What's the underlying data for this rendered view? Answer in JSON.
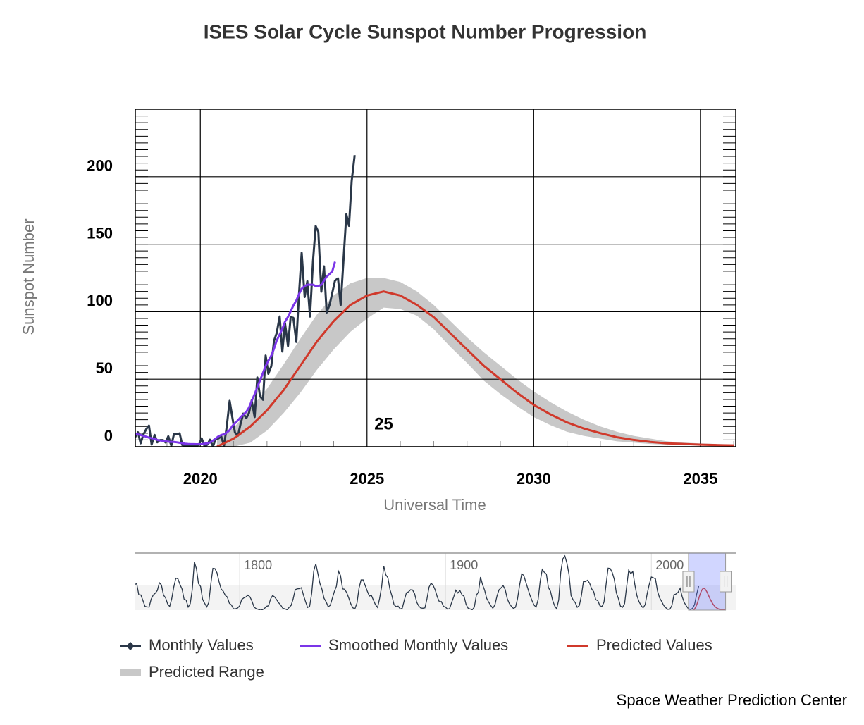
{
  "chart_data": {
    "type": "line",
    "title": "ISES Solar Cycle Sunspot Number Progression",
    "x_label": "Universal Time",
    "y_label": "Sunspot Number",
    "xlim": [
      2018.05,
      2036.06
    ],
    "xticks": [
      2020,
      2025,
      2030,
      2035
    ],
    "xminorticks": [
      2019,
      2021,
      2022,
      2023,
      2024,
      2026,
      2027,
      2028,
      2029,
      2031,
      2032,
      2033,
      2034,
      2036
    ],
    "ylim": [
      0,
      250
    ],
    "yticks": [
      0,
      50,
      100,
      150,
      200
    ],
    "yminorticks": [
      5,
      10,
      15,
      20,
      25,
      30,
      35,
      40,
      45,
      50,
      55,
      60,
      65,
      70,
      75,
      80,
      85,
      90,
      95,
      100,
      105,
      110,
      115,
      120,
      125,
      130,
      135,
      140,
      145,
      150,
      155,
      160,
      165,
      170,
      175,
      180,
      185,
      190,
      195,
      200,
      205,
      210,
      215,
      220,
      225,
      230,
      235,
      240,
      245
    ],
    "grid": true,
    "legend": "bottom-left",
    "annotations": [
      {
        "text": "25",
        "x": 2025.5,
        "y": 16
      }
    ],
    "series": [
      {
        "name": "Monthly Values",
        "color": "#2a3748",
        "x": [
          2018.04,
          2018.13,
          2018.21,
          2018.29,
          2018.38,
          2018.46,
          2018.54,
          2018.63,
          2018.71,
          2018.79,
          2018.88,
          2018.96,
          2019.04,
          2019.13,
          2019.21,
          2019.29,
          2019.38,
          2019.46,
          2019.54,
          2019.63,
          2019.71,
          2019.79,
          2019.88,
          2019.96,
          2020.04,
          2020.13,
          2020.21,
          2020.29,
          2020.38,
          2020.46,
          2020.54,
          2020.63,
          2020.71,
          2020.79,
          2020.88,
          2020.96,
          2021.04,
          2021.13,
          2021.21,
          2021.29,
          2021.38,
          2021.46,
          2021.54,
          2021.63,
          2021.71,
          2021.79,
          2021.88,
          2021.96,
          2022.04,
          2022.13,
          2022.21,
          2022.29,
          2022.38,
          2022.46,
          2022.54,
          2022.63,
          2022.71,
          2022.79,
          2022.88,
          2022.96,
          2023.04,
          2023.13,
          2023.21,
          2023.29,
          2023.38,
          2023.46,
          2023.54,
          2023.63,
          2023.71,
          2023.79,
          2023.88,
          2023.96,
          2024.04,
          2024.13,
          2024.21,
          2024.29,
          2024.38,
          2024.46,
          2024.54,
          2024.63
        ],
        "values": [
          6.8,
          10.7,
          2.5,
          8.9,
          13.1,
          15.6,
          1.6,
          8.7,
          3.3,
          4.9,
          4.9,
          3.1,
          7.7,
          0.8,
          9.4,
          9.1,
          9.9,
          1.2,
          0.9,
          0.5,
          1.1,
          0.4,
          0.5,
          1.5,
          6.2,
          0.2,
          1.5,
          5.2,
          0.2,
          5.8,
          6.1,
          7.5,
          0.6,
          14.4,
          34.0,
          21.8,
          10.4,
          8.2,
          17.2,
          24.5,
          21.2,
          25.0,
          34.3,
          22.0,
          51.3,
          37.4,
          34.8,
          67.5,
          54.0,
          59.7,
          78.5,
          84.1,
          96.5,
          70.5,
          91.4,
          74.6,
          96.0,
          95.5,
          77.6,
          113.1,
          143.6,
          110.9,
          122.6,
          96.4,
          137.4,
          163.4,
          159.1,
          114.8,
          133.6,
          99.4,
          105.4,
          114.2,
          123.0,
          124.7,
          104.9,
          136.5,
          172.1,
          163.6,
          196.8,
          216.0
        ]
      },
      {
        "name": "Smoothed Monthly Values",
        "color": "#7b35e8",
        "x": [
          2018.04,
          2018.13,
          2018.21,
          2018.29,
          2018.38,
          2018.46,
          2018.54,
          2018.63,
          2018.71,
          2018.79,
          2018.88,
          2018.96,
          2019.04,
          2019.13,
          2019.21,
          2019.29,
          2019.38,
          2019.46,
          2019.54,
          2019.63,
          2019.71,
          2019.79,
          2019.88,
          2019.96,
          2020.04,
          2020.13,
          2020.21,
          2020.29,
          2020.38,
          2020.46,
          2020.54,
          2020.63,
          2020.71,
          2020.79,
          2020.88,
          2020.96,
          2021.04,
          2021.13,
          2021.21,
          2021.29,
          2021.38,
          2021.46,
          2021.54,
          2021.63,
          2021.71,
          2021.79,
          2021.88,
          2021.96,
          2022.04,
          2022.13,
          2022.21,
          2022.29,
          2022.38,
          2022.46,
          2022.54,
          2022.63,
          2022.71,
          2022.79,
          2022.88,
          2022.96,
          2023.04,
          2023.13,
          2023.21,
          2023.29,
          2023.38,
          2023.46,
          2023.54,
          2023.63,
          2023.71,
          2023.79,
          2023.88,
          2023.96,
          2024.04
        ],
        "values": [
          9.4,
          9.1,
          8.7,
          8.0,
          7.4,
          6.7,
          6.3,
          5.8,
          5.0,
          4.6,
          4.4,
          4.0,
          3.7,
          3.5,
          3.5,
          3.3,
          2.9,
          2.6,
          2.2,
          2.0,
          1.9,
          1.9,
          1.8,
          1.8,
          1.9,
          2.3,
          2.5,
          3.1,
          4.5,
          6.0,
          7.6,
          8.7,
          9.2,
          10.4,
          12.3,
          15.3,
          17.4,
          19.6,
          21.9,
          23.8,
          25.8,
          29.0,
          33.8,
          39.0,
          44.1,
          49.0,
          54.7,
          59.8,
          63.6,
          67.5,
          72.6,
          78.6,
          83.1,
          87.3,
          92.6,
          96.2,
          100.3,
          104.5,
          108.3,
          113.1,
          117.0,
          119.0,
          120.0,
          120.0,
          120.0,
          119.0,
          119.0,
          120.0,
          123.0,
          126.0,
          128.0,
          130.0,
          137.0
        ]
      },
      {
        "name": "Predicted Values",
        "color": "#d0392b",
        "x": [
          2020.5,
          2021,
          2021.5,
          2022,
          2022.5,
          2023,
          2023.5,
          2024,
          2024.5,
          2025,
          2025.5,
          2026,
          2026.5,
          2027,
          2027.5,
          2028,
          2028.5,
          2029,
          2029.5,
          2030,
          2030.5,
          2031,
          2031.5,
          2032,
          2032.5,
          2033,
          2033.5,
          2034,
          2034.5,
          2035,
          2035.5,
          2036
        ],
        "values": [
          0,
          6,
          15,
          27,
          42,
          60,
          78,
          93,
          105,
          112,
          115,
          112,
          105,
          96,
          84,
          72,
          60,
          50,
          40,
          31,
          24,
          18,
          13.5,
          10,
          7,
          5,
          3.5,
          2.5,
          2,
          1.5,
          1.2,
          1.0
        ]
      },
      {
        "name": "Predicted Range",
        "color": "#c8c8c8",
        "type": "range",
        "x": [
          2020.5,
          2021,
          2021.5,
          2022,
          2022.5,
          2023,
          2023.5,
          2024,
          2024.5,
          2025,
          2025.5,
          2026,
          2026.5,
          2027,
          2027.5,
          2028,
          2028.5,
          2029,
          2029.5,
          2030,
          2030.5,
          2031,
          2031.5,
          2032,
          2032.5,
          2033,
          2033.5,
          2034,
          2034.5,
          2035,
          2035.5,
          2036
        ],
        "values": [
          5,
          14,
          28,
          43,
          61,
          80,
          98,
          112,
          121,
          125,
          125,
          122,
          115,
          105,
          93,
          81,
          70,
          60,
          50,
          41,
          33,
          26,
          20,
          15,
          11,
          8,
          6,
          4,
          3,
          2.5,
          2,
          1.5
        ],
        "low": [
          0,
          0,
          3,
          12,
          25,
          40,
          57,
          72,
          85,
          95,
          103,
          102,
          97,
          87,
          74,
          62,
          49,
          39,
          30,
          22,
          16,
          11,
          8,
          6,
          4,
          3,
          2,
          1.5,
          1,
          1,
          0.8,
          0.7
        ]
      }
    ],
    "navigator": {
      "color": "#2a3748",
      "xlim": [
        1749.3,
        2041
      ],
      "xticks": [
        1800,
        1900,
        2000
      ],
      "ylim": [
        0,
        300
      ],
      "x": [
        1749,
        1750,
        1751,
        1752,
        1753,
        1754,
        1755,
        1756,
        1757,
        1758,
        1759,
        1760,
        1761,
        1762,
        1763,
        1764,
        1765,
        1766,
        1767,
        1768,
        1769,
        1770,
        1771,
        1772,
        1773,
        1774,
        1775,
        1776,
        1777,
        1778,
        1779,
        1780,
        1781,
        1782,
        1783,
        1784,
        1785,
        1786,
        1787,
        1788,
        1789,
        1790,
        1791,
        1792,
        1793,
        1794,
        1795,
        1796,
        1797,
        1798,
        1799,
        1800,
        1801,
        1802,
        1803,
        1804,
        1805,
        1806,
        1807,
        1808,
        1809,
        1810,
        1811,
        1812,
        1813,
        1814,
        1815,
        1816,
        1817,
        1818,
        1819,
        1820,
        1821,
        1822,
        1823,
        1824,
        1825,
        1826,
        1827,
        1828,
        1829,
        1830,
        1831,
        1832,
        1833,
        1834,
        1835,
        1836,
        1837,
        1838,
        1839,
        1840,
        1841,
        1842,
        1843,
        1844,
        1845,
        1846,
        1847,
        1848,
        1849,
        1850,
        1851,
        1852,
        1853,
        1854,
        1855,
        1856,
        1857,
        1858,
        1859,
        1860,
        1861,
        1862,
        1863,
        1864,
        1865,
        1866,
        1867,
        1868,
        1869,
        1870,
        1871,
        1872,
        1873,
        1874,
        1875,
        1876,
        1877,
        1878,
        1879,
        1880,
        1881,
        1882,
        1883,
        1884,
        1885,
        1886,
        1887,
        1888,
        1889,
        1890,
        1891,
        1892,
        1893,
        1894,
        1895,
        1896,
        1897,
        1898,
        1899,
        1900,
        1901,
        1902,
        1903,
        1904,
        1905,
        1906,
        1907,
        1908,
        1909,
        1910,
        1911,
        1912,
        1913,
        1914,
        1915,
        1916,
        1917,
        1918,
        1919,
        1920,
        1921,
        1922,
        1923,
        1924,
        1925,
        1926,
        1927,
        1928,
        1929,
        1930,
        1931,
        1932,
        1933,
        1934,
        1935,
        1936,
        1937,
        1938,
        1939,
        1940,
        1941,
        1942,
        1943,
        1944,
        1945,
        1946,
        1947,
        1948,
        1949,
        1950,
        1951,
        1952,
        1953,
        1954,
        1955,
        1956,
        1957,
        1958,
        1959,
        1960,
        1961,
        1962,
        1963,
        1964,
        1965,
        1966,
        1967,
        1968,
        1969,
        1970,
        1971,
        1972,
        1973,
        1974,
        1975,
        1976,
        1977,
        1978,
        1979,
        1980,
        1981,
        1982,
        1983,
        1984,
        1985,
        1986,
        1987,
        1988,
        1989,
        1990,
        1991,
        1992,
        1993,
        1994,
        1995,
        1996,
        1997,
        1998,
        1999,
        2000,
        2001,
        2002,
        2003,
        2004,
        2005,
        2006,
        2007,
        2008,
        2009,
        2010,
        2011,
        2012,
        2013,
        2014,
        2015,
        2016,
        2017,
        2018,
        2019,
        2020,
        2021,
        2022,
        2023
      ],
      "values": [
        135,
        139,
        80,
        80,
        51,
        20,
        17,
        16,
        58,
        79,
        89,
        103,
        144,
        132,
        79,
        65,
        33,
        19,
        60,
        122,
        168,
        165,
        135,
        111,
        58,
        53,
        16,
        34,
        111,
        254,
        218,
        140,
        125,
        57,
        36,
        17,
        40,
        138,
        220,
        218,
        196,
        149,
        111,
        100,
        78,
        69,
        36,
        27,
        7,
        7,
        11,
        23,
        56,
        64,
        69,
        79,
        70,
        47,
        16,
        8,
        4,
        0,
        2,
        8,
        20,
        23,
        58,
        77,
        69,
        54,
        38,
        26,
        9,
        7,
        2,
        14,
        25,
        60,
        108,
        112,
        113,
        118,
        79,
        45,
        14,
        20,
        88,
        206,
        244,
        192,
        140,
        109,
        62,
        44,
        18,
        25,
        62,
        98,
        125,
        205,
        182,
        112,
        110,
        92,
        64,
        33,
        12,
        7,
        37,
        116,
        159,
        159,
        129,
        100,
        74,
        78,
        52,
        28,
        14,
        62,
        125,
        233,
        186,
        171,
        110,
        74,
        28,
        19,
        21,
        6,
        10,
        53,
        91,
        96,
        107,
        106,
        86,
        42,
        22,
        11,
        10,
        12,
        60,
        121,
        142,
        130,
        106,
        70,
        44,
        45,
        20,
        16,
        5,
        8,
        41,
        70,
        105,
        90,
        103,
        81,
        73,
        30,
        10,
        6,
        2,
        16,
        79,
        95,
        174,
        134,
        105,
        62,
        42,
        24,
        10,
        28,
        74,
        107,
        117,
        129,
        108,
        60,
        35,
        20,
        9,
        15,
        60,
        132,
        190,
        183,
        148,
        113,
        79,
        51,
        27,
        16,
        56,
        152,
        214,
        199,
        190,
        119,
        99,
        53,
        23,
        7,
        54,
        200,
        270,
        285,
        247,
        188,
        76,
        54,
        40,
        15,
        24,
        75,
        150,
        150,
        157,
        142,
        112,
        97,
        55,
        50,
        23,
        19,
        42,
        134,
        221,
        219,
        198,
        162,
        91,
        61,
        21,
        15,
        34,
        124,
        211,
        192,
        203,
        133,
        76,
        45,
        25,
        12,
        29,
        88,
        136,
        174,
        170,
        164,
        100,
        65,
        46,
        25,
        13,
        4,
        5,
        25,
        81,
        85,
        94,
        114,
        70,
        40,
        22,
        7,
        4,
        9,
        29,
        83,
        126
      ]
    },
    "credit": "Space Weather Prediction Center"
  }
}
